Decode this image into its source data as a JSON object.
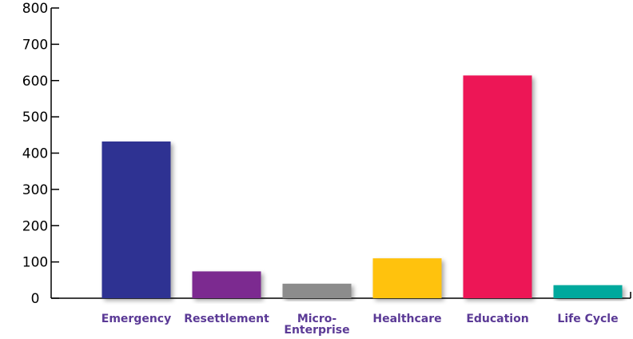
{
  "chart_data": {
    "type": "bar",
    "title": "",
    "xlabel": "",
    "ylabel": "",
    "categories": [
      "Emergency",
      "Resettlement",
      "Micro-\nEnterprise",
      "Healthcare",
      "Education",
      "Life Cycle"
    ],
    "values": [
      432,
      74,
      40,
      110,
      614,
      36
    ],
    "colors": [
      "#2e3192",
      "#7b2990",
      "#8c8c8c",
      "#ffc20e",
      "#ed1556",
      "#00a99d"
    ],
    "ylim": [
      0,
      800
    ],
    "yticks": [
      0,
      100,
      200,
      300,
      400,
      500,
      600,
      700,
      800
    ],
    "grid": false,
    "label_color": "#5b3a96",
    "axis_color": "#000000"
  }
}
